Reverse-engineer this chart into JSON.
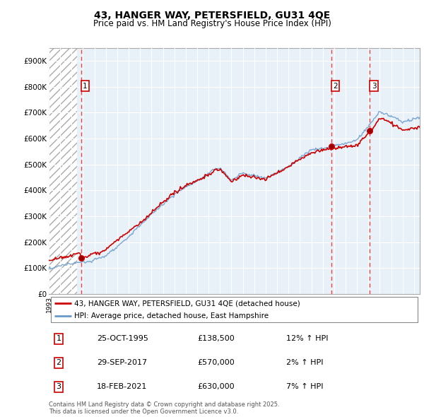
{
  "title": "43, HANGER WAY, PETERSFIELD, GU31 4QE",
  "subtitle": "Price paid vs. HM Land Registry's House Price Index (HPI)",
  "ylim": [
    0,
    950000
  ],
  "yticks": [
    0,
    100000,
    200000,
    300000,
    400000,
    500000,
    600000,
    700000,
    800000,
    900000
  ],
  "ytick_labels": [
    "£0",
    "£100K",
    "£200K",
    "£300K",
    "£400K",
    "£500K",
    "£600K",
    "£700K",
    "£800K",
    "£900K"
  ],
  "xmin": 1993.0,
  "xmax": 2025.5,
  "hatch_region_end_year": 1995.5,
  "sale_dates": [
    1995.83,
    2017.75,
    2021.13
  ],
  "sale_prices": [
    138500,
    570000,
    630000
  ],
  "sale_labels": [
    "1",
    "2",
    "3"
  ],
  "legend_line1": "43, HANGER WAY, PETERSFIELD, GU31 4QE (detached house)",
  "legend_line2": "HPI: Average price, detached house, East Hampshire",
  "table_rows": [
    [
      "1",
      "25-OCT-1995",
      "£138,500",
      "12% ↑ HPI"
    ],
    [
      "2",
      "29-SEP-2017",
      "£570,000",
      "2% ↑ HPI"
    ],
    [
      "3",
      "18-FEB-2021",
      "£630,000",
      "7% ↑ HPI"
    ]
  ],
  "footnote": "Contains HM Land Registry data © Crown copyright and database right 2025.\nThis data is licensed under the Open Government Licence v3.0.",
  "line_color_price": "#cc0000",
  "line_color_hpi": "#6699cc",
  "vline_color": "#ee4444",
  "chart_bg": "#e8f0f8",
  "background_color": "#ffffff",
  "grid_color": "#ffffff"
}
